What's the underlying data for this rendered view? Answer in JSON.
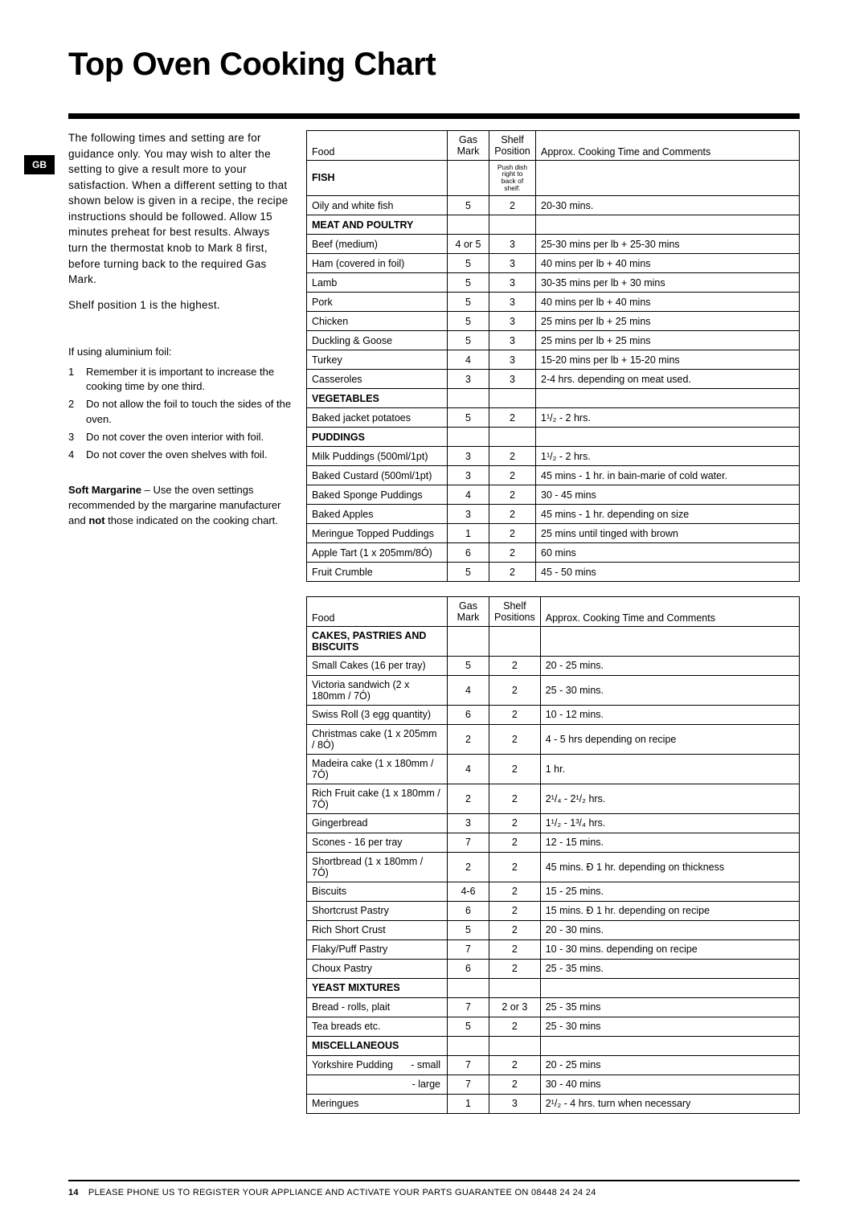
{
  "title": "Top Oven Cooking Chart",
  "region_tab": "GB",
  "intro": "The following times and setting are for guidance only. You may wish to alter the setting to give a result more to your satisfaction. When a different setting to that shown below is given in a recipe, the recipe instructions should be followed. Allow 15 minutes preheat for best results. Always turn the thermostat knob to Mark 8 first, before turning back to the required Gas Mark.",
  "shelf_note": "Shelf position 1 is the highest.",
  "foil_header": "If using aluminium foil:",
  "foil_items": [
    "Remember it is important to increase the cooking time by one third.",
    "Do not allow the foil to touch the sides of the oven.",
    "Do not cover the oven interior with foil.",
    "Do not cover the oven shelves with foil."
  ],
  "margarine_bold": "Soft Margarine",
  "margarine_text": " – Use the oven settings recommended by the margarine manufacturer and ",
  "margarine_not": "not",
  "margarine_tail": " those indicated on the cooking chart.",
  "columns": {
    "food": "Food",
    "gas1": "Gas",
    "gas2": "Mark",
    "shelf1": "Shelf",
    "shelf2a": "Position",
    "shelf2b": "Positions",
    "time": "Approx. Cooking Time and Comments"
  },
  "push_note": "Push dish right to back of shelf.",
  "table1": [
    {
      "section": "Fish"
    },
    {
      "food": "Oily and white fish",
      "gas": "5",
      "shelf": "2",
      "time": "20-30 mins."
    },
    {
      "section": "Meat and Poultry"
    },
    {
      "food": "Beef (medium)",
      "gas": "4 or 5",
      "shelf": "3",
      "time": "25-30 mins per lb + 25-30 mins"
    },
    {
      "food": "Ham (covered in foil)",
      "gas": "5",
      "shelf": "3",
      "time": "40 mins per lb + 40 mins"
    },
    {
      "food": "Lamb",
      "gas": "5",
      "shelf": "3",
      "time": "30-35 mins per lb + 30 mins"
    },
    {
      "food": "Pork",
      "gas": "5",
      "shelf": "3",
      "time": "40 mins per lb + 40 mins"
    },
    {
      "food": "Chicken",
      "gas": "5",
      "shelf": "3",
      "time": "25 mins per lb + 25 mins"
    },
    {
      "food": "Duckling & Goose",
      "gas": "5",
      "shelf": "3",
      "time": "25 mins per lb + 25 mins"
    },
    {
      "food": "Turkey",
      "gas": "4",
      "shelf": "3",
      "time": "15-20 mins per lb + 15-20 mins"
    },
    {
      "food": "Casseroles",
      "gas": "3",
      "shelf": "3",
      "time": "2-4 hrs. depending on meat used."
    },
    {
      "section": "Vegetables"
    },
    {
      "food": "Baked jacket potatoes",
      "gas": "5",
      "shelf": "2",
      "time": "1¹/₂ - 2 hrs."
    },
    {
      "section": "Puddings"
    },
    {
      "food": "Milk Puddings (500ml/1pt)",
      "gas": "3",
      "shelf": "2",
      "time": "1¹/₂ - 2 hrs."
    },
    {
      "food": "Baked Custard (500ml/1pt)",
      "gas": "3",
      "shelf": "2",
      "time": "45 mins - 1 hr. in bain-marie of cold water."
    },
    {
      "food": "Baked Sponge Puddings",
      "gas": "4",
      "shelf": "2",
      "time": "30 - 45 mins"
    },
    {
      "food": "Baked Apples",
      "gas": "3",
      "shelf": "2",
      "time": "45 mins - 1 hr. depending on size"
    },
    {
      "food": "Meringue Topped Puddings",
      "gas": "1",
      "shelf": "2",
      "time": "25 mins until tinged with brown"
    },
    {
      "food": "Apple Tart (1 x 205mm/8Ó)",
      "gas": "6",
      "shelf": "2",
      "time": "60 mins"
    },
    {
      "food": "Fruit Crumble",
      "gas": "5",
      "shelf": "2",
      "time": "45 - 50 mins"
    }
  ],
  "table2": [
    {
      "section": "Cakes, Pastries and Biscuits"
    },
    {
      "food": "Small Cakes (16 per tray)",
      "gas": "5",
      "shelf": "2",
      "time": "20 - 25 mins."
    },
    {
      "food": "Victoria sandwich (2 x 180mm / 7Ó)",
      "gas": "4",
      "shelf": "2",
      "time": "25 - 30 mins."
    },
    {
      "food": "Swiss Roll (3 egg quantity)",
      "gas": "6",
      "shelf": "2",
      "time": "10 - 12 mins."
    },
    {
      "food": "Christmas cake (1 x 205mm / 8Ó)",
      "gas": "2",
      "shelf": "2",
      "time": "4 - 5 hrs depending on recipe"
    },
    {
      "food": "Madeira cake (1 x 180mm / 7Ó)",
      "gas": "4",
      "shelf": "2",
      "time": "1 hr."
    },
    {
      "food": "Rich Fruit cake  (1 x 180mm / 7Ó)",
      "gas": "2",
      "shelf": "2",
      "time": "2¹/₄ - 2¹/₂ hrs."
    },
    {
      "food": "Gingerbread",
      "gas": "3",
      "shelf": "2",
      "time": "1¹/₂ - 1³/₄ hrs."
    },
    {
      "food": "Scones - 16 per tray",
      "gas": "7",
      "shelf": "2",
      "time": "12 - 15 mins."
    },
    {
      "food": "Shortbread (1 x 180mm / 7Ó)",
      "gas": "2",
      "shelf": "2",
      "time": "45 mins. Ð 1 hr. depending on thickness"
    },
    {
      "food": "Biscuits",
      "gas": "4-6",
      "shelf": "2",
      "time": "15 - 25 mins."
    },
    {
      "food": "Shortcrust Pastry",
      "gas": "6",
      "shelf": "2",
      "time": "15 mins. Ð 1 hr. depending on recipe"
    },
    {
      "food": "Rich Short Crust",
      "gas": "5",
      "shelf": "2",
      "time": "20 - 30 mins."
    },
    {
      "food": "Flaky/Puff Pastry",
      "gas": "7",
      "shelf": "2",
      "time": "10 - 30 mins. depending on recipe"
    },
    {
      "food": "Choux Pastry",
      "gas": "6",
      "shelf": "2",
      "time": "25 - 35 mins."
    },
    {
      "section": "Yeast Mixtures"
    },
    {
      "food": "Bread - rolls, plait",
      "gas": "7",
      "shelf": "2 or 3",
      "time": "25 - 35 mins"
    },
    {
      "food": "Tea breads etc.",
      "gas": "5",
      "shelf": "2",
      "time": "25 - 30 mins"
    },
    {
      "section": "Miscellaneous"
    },
    {
      "yorkshire": true,
      "food": "Yorkshire Pudding",
      "variant": "- small",
      "gas": "7",
      "shelf": "2",
      "time": "20 - 25 mins"
    },
    {
      "yorkshire": true,
      "food": "",
      "variant": "- large",
      "gas": "7",
      "shelf": "2",
      "time": "30 - 40 mins"
    },
    {
      "food": "Meringues",
      "gas": "1",
      "shelf": "3",
      "time": "2¹/₂ - 4 hrs. turn when necessary"
    }
  ],
  "footer": "PLEASE PHONE US TO REGISTER YOUR APPLIANCE  AND ACTIVATE YOUR PARTS GUARANTEE ON 08448 24 24 24",
  "page_no": "14"
}
